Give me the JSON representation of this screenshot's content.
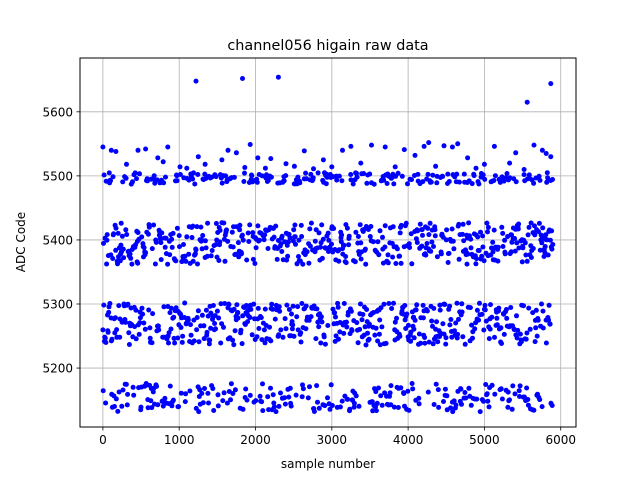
{
  "chart_data": {
    "type": "scatter",
    "title": "channel056 higain raw data",
    "xlabel": "sample number",
    "ylabel": "ADC Code",
    "xlim": [
      -300,
      6200
    ],
    "ylim": [
      5108,
      5684
    ],
    "xticks": [
      0,
      1000,
      2000,
      3000,
      4000,
      5000,
      6000
    ],
    "yticks": [
      5200,
      5300,
      5400,
      5500,
      5600
    ],
    "grid": true,
    "marker_color": "#0000ff",
    "n_samples": 5900,
    "bands": [
      {
        "center": 5155,
        "min": 5132,
        "max": 5176,
        "share": 0.18
      },
      {
        "center": 5268,
        "min": 5236,
        "max": 5302,
        "share": 0.34
      },
      {
        "center": 5390,
        "min": 5362,
        "max": 5428,
        "share": 0.34
      },
      {
        "center": 5496,
        "min": 5487,
        "max": 5505,
        "share": 0.14
      }
    ],
    "outliers": [
      {
        "x": 1220,
        "y": 5648
      },
      {
        "x": 1830,
        "y": 5652
      },
      {
        "x": 2300,
        "y": 5654
      },
      {
        "x": 5560,
        "y": 5615
      },
      {
        "x": 5870,
        "y": 5644
      },
      {
        "x": 0,
        "y": 5545
      },
      {
        "x": 110,
        "y": 5540
      },
      {
        "x": 170,
        "y": 5538
      },
      {
        "x": 310,
        "y": 5518
      },
      {
        "x": 460,
        "y": 5540
      },
      {
        "x": 560,
        "y": 5542
      },
      {
        "x": 720,
        "y": 5528
      },
      {
        "x": 790,
        "y": 5522
      },
      {
        "x": 850,
        "y": 5545
      },
      {
        "x": 1010,
        "y": 5514
      },
      {
        "x": 1100,
        "y": 5512
      },
      {
        "x": 1250,
        "y": 5530
      },
      {
        "x": 1340,
        "y": 5518
      },
      {
        "x": 1560,
        "y": 5525
      },
      {
        "x": 1640,
        "y": 5540
      },
      {
        "x": 1750,
        "y": 5536
      },
      {
        "x": 1860,
        "y": 5513
      },
      {
        "x": 1930,
        "y": 5549
      },
      {
        "x": 2030,
        "y": 5528
      },
      {
        "x": 2130,
        "y": 5512
      },
      {
        "x": 2200,
        "y": 5527
      },
      {
        "x": 2400,
        "y": 5519
      },
      {
        "x": 2510,
        "y": 5515
      },
      {
        "x": 2640,
        "y": 5539
      },
      {
        "x": 2760,
        "y": 5511
      },
      {
        "x": 2890,
        "y": 5525
      },
      {
        "x": 3000,
        "y": 5514
      },
      {
        "x": 3140,
        "y": 5540
      },
      {
        "x": 3250,
        "y": 5546
      },
      {
        "x": 3380,
        "y": 5520
      },
      {
        "x": 3520,
        "y": 5548
      },
      {
        "x": 3700,
        "y": 5545
      },
      {
        "x": 3830,
        "y": 5514
      },
      {
        "x": 3950,
        "y": 5541
      },
      {
        "x": 4090,
        "y": 5532
      },
      {
        "x": 4210,
        "y": 5546
      },
      {
        "x": 4270,
        "y": 5552
      },
      {
        "x": 4360,
        "y": 5515
      },
      {
        "x": 4470,
        "y": 5547
      },
      {
        "x": 4580,
        "y": 5545
      },
      {
        "x": 4650,
        "y": 5550
      },
      {
        "x": 4780,
        "y": 5528
      },
      {
        "x": 4890,
        "y": 5512
      },
      {
        "x": 5000,
        "y": 5518
      },
      {
        "x": 5130,
        "y": 5546
      },
      {
        "x": 5330,
        "y": 5520
      },
      {
        "x": 5410,
        "y": 5536
      },
      {
        "x": 5520,
        "y": 5510
      },
      {
        "x": 5650,
        "y": 5548
      },
      {
        "x": 5760,
        "y": 5540
      },
      {
        "x": 5810,
        "y": 5535
      },
      {
        "x": 5870,
        "y": 5530
      }
    ]
  }
}
